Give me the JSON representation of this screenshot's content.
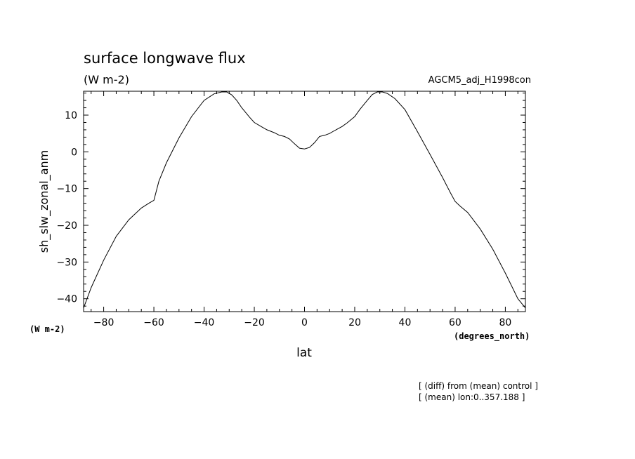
{
  "chart_data": {
    "type": "line",
    "title": "surface longwave flux",
    "units": "(W m-2)",
    "run_label": "AGCM5_adj_H1998con",
    "xlabel": "lat",
    "x_units": "(degrees_north)",
    "ylabel": "sh_slw_zonal_anm",
    "y_units": "(W m-2)",
    "xlim": [
      -88,
      88
    ],
    "ylim": [
      -43.5,
      16.5
    ],
    "x_ticks": [
      -80,
      -60,
      -40,
      -20,
      0,
      20,
      40,
      60,
      80
    ],
    "y_ticks": [
      -40,
      -30,
      -20,
      -10,
      0,
      10
    ],
    "grid": false,
    "notes": [
      "[ (diff) from (mean) control ]",
      "[ (mean) lon:0..357.188 ]"
    ],
    "series": [
      {
        "x": [
          -88,
          -85,
          -80,
          -75,
          -70,
          -65,
          -62,
          -60,
          -58,
          -55,
          -50,
          -45,
          -40,
          -36,
          -33,
          -31,
          -29,
          -27,
          -25,
          -22,
          -20,
          -17,
          -15,
          -12,
          -10,
          -8,
          -6,
          -4,
          -2,
          0,
          2,
          4,
          6,
          8,
          10,
          12,
          15,
          17,
          20,
          22,
          25,
          27,
          29,
          31,
          33,
          36,
          40,
          45,
          50,
          55,
          58,
          60,
          62,
          65,
          70,
          75,
          80,
          85,
          88
        ],
        "y": [
          -42.5,
          -37,
          -29.5,
          -23,
          -18.5,
          -15.3,
          -14,
          -13.2,
          -8,
          -3,
          3.8,
          9.6,
          14,
          15.8,
          16.3,
          16.3,
          15.5,
          14,
          12,
          9.5,
          8,
          6.8,
          6,
          5.2,
          4.5,
          4.2,
          3.5,
          2.2,
          1.0,
          0.8,
          1.2,
          2.5,
          4.2,
          4.5,
          5.0,
          5.8,
          6.9,
          7.9,
          9.6,
          11.5,
          14,
          15.6,
          16.3,
          16.3,
          15.9,
          14.5,
          11.5,
          5.5,
          -0.7,
          -7,
          -11,
          -13.5,
          -14.8,
          -16.5,
          -21,
          -26.5,
          -33,
          -40,
          -42.5
        ]
      }
    ]
  }
}
